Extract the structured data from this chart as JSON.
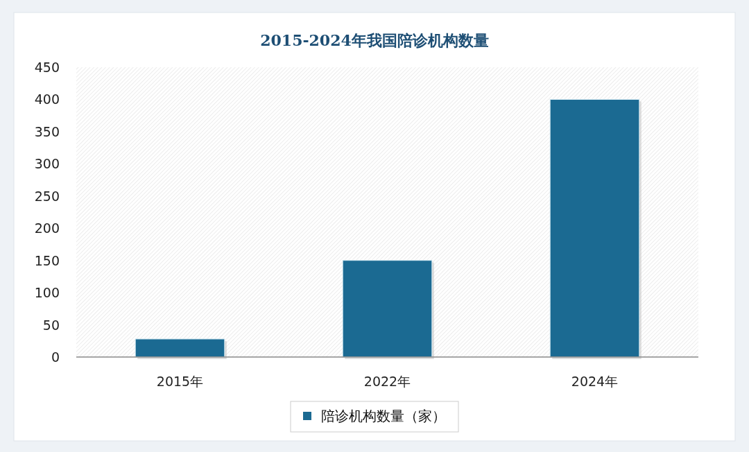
{
  "chart_data": {
    "type": "bar",
    "title": "2015-2024年我国陪诊机构数量",
    "categories": [
      "2015年",
      "2022年",
      "2024年"
    ],
    "series": [
      {
        "name": "陪诊机构数量（家）",
        "color": "#1b6a92",
        "values": [
          28,
          150,
          400
        ]
      }
    ],
    "ylim": [
      0,
      450
    ],
    "yticks": [
      0,
      50,
      100,
      150,
      200,
      250,
      300,
      350,
      400,
      450
    ],
    "grid": false,
    "legend": "bottom"
  }
}
